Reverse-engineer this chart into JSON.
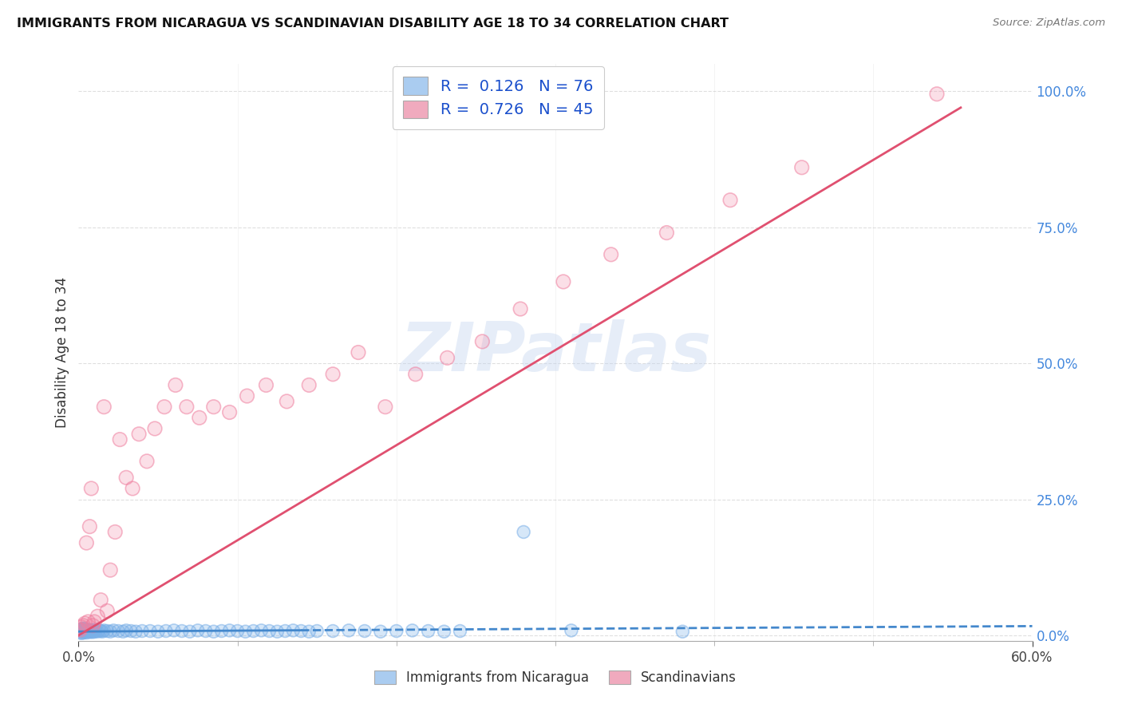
{
  "title": "IMMIGRANTS FROM NICARAGUA VS SCANDINAVIAN DISABILITY AGE 18 TO 34 CORRELATION CHART",
  "source": "Source: ZipAtlas.com",
  "ylabel_label": "Disability Age 18 to 34",
  "right_yticks": [
    "0.0%",
    "25.0%",
    "50.0%",
    "75.0%",
    "100.0%"
  ],
  "right_ytick_vals": [
    0.0,
    0.25,
    0.5,
    0.75,
    1.0
  ],
  "xlim": [
    0.0,
    0.6
  ],
  "ylim": [
    -0.01,
    1.05
  ],
  "watermark_text": "ZIPatlas",
  "legend_label1": "R =  0.126   N = 76",
  "legend_label2": "R =  0.726   N = 45",
  "legend_color1": "#aaccf0",
  "legend_color2": "#f0aabe",
  "scatter_color1": "#7ab0e8",
  "scatter_color2": "#f080a0",
  "line_color1": "#4488cc",
  "line_color2": "#e05070",
  "grid_color": "#d8d8d8",
  "background_color": "#ffffff",
  "nica_x": [
    0.001,
    0.001,
    0.001,
    0.002,
    0.002,
    0.002,
    0.002,
    0.003,
    0.003,
    0.003,
    0.003,
    0.004,
    0.004,
    0.004,
    0.005,
    0.005,
    0.005,
    0.006,
    0.006,
    0.007,
    0.007,
    0.008,
    0.008,
    0.009,
    0.009,
    0.01,
    0.01,
    0.011,
    0.012,
    0.013,
    0.014,
    0.015,
    0.016,
    0.018,
    0.02,
    0.022,
    0.025,
    0.028,
    0.03,
    0.033,
    0.036,
    0.04,
    0.045,
    0.05,
    0.055,
    0.06,
    0.065,
    0.07,
    0.075,
    0.08,
    0.085,
    0.09,
    0.095,
    0.1,
    0.105,
    0.11,
    0.115,
    0.12,
    0.125,
    0.13,
    0.135,
    0.14,
    0.145,
    0.15,
    0.16,
    0.17,
    0.18,
    0.19,
    0.2,
    0.21,
    0.22,
    0.23,
    0.24,
    0.28,
    0.31,
    0.38
  ],
  "nica_y": [
    0.005,
    0.008,
    0.01,
    0.004,
    0.007,
    0.009,
    0.012,
    0.005,
    0.008,
    0.011,
    0.013,
    0.006,
    0.009,
    0.012,
    0.005,
    0.008,
    0.011,
    0.007,
    0.01,
    0.006,
    0.009,
    0.007,
    0.01,
    0.006,
    0.009,
    0.007,
    0.01,
    0.008,
    0.007,
    0.009,
    0.008,
    0.007,
    0.009,
    0.008,
    0.007,
    0.009,
    0.008,
    0.007,
    0.009,
    0.008,
    0.007,
    0.008,
    0.008,
    0.007,
    0.008,
    0.009,
    0.008,
    0.007,
    0.009,
    0.008,
    0.007,
    0.008,
    0.009,
    0.008,
    0.007,
    0.008,
    0.009,
    0.008,
    0.007,
    0.008,
    0.009,
    0.008,
    0.007,
    0.008,
    0.008,
    0.009,
    0.008,
    0.007,
    0.008,
    0.009,
    0.008,
    0.007,
    0.008,
    0.19,
    0.009,
    0.007
  ],
  "scan_x": [
    0.001,
    0.002,
    0.003,
    0.004,
    0.005,
    0.006,
    0.007,
    0.008,
    0.009,
    0.01,
    0.012,
    0.014,
    0.016,
    0.018,
    0.02,
    0.023,
    0.026,
    0.03,
    0.034,
    0.038,
    0.043,
    0.048,
    0.054,
    0.061,
    0.068,
    0.076,
    0.085,
    0.095,
    0.106,
    0.118,
    0.131,
    0.145,
    0.16,
    0.176,
    0.193,
    0.212,
    0.232,
    0.254,
    0.278,
    0.305,
    0.335,
    0.37,
    0.41,
    0.455,
    0.54
  ],
  "scan_y": [
    0.01,
    0.015,
    0.018,
    0.022,
    0.17,
    0.025,
    0.2,
    0.27,
    0.018,
    0.025,
    0.035,
    0.065,
    0.42,
    0.045,
    0.12,
    0.19,
    0.36,
    0.29,
    0.27,
    0.37,
    0.32,
    0.38,
    0.42,
    0.46,
    0.42,
    0.4,
    0.42,
    0.41,
    0.44,
    0.46,
    0.43,
    0.46,
    0.48,
    0.52,
    0.42,
    0.48,
    0.51,
    0.54,
    0.6,
    0.65,
    0.7,
    0.74,
    0.8,
    0.86,
    0.995
  ],
  "nica_line_x": [
    0.0,
    0.6
  ],
  "nica_line_y": [
    0.007,
    0.017
  ],
  "scan_line_x": [
    0.0,
    0.555
  ],
  "scan_line_y": [
    0.0,
    0.97
  ]
}
